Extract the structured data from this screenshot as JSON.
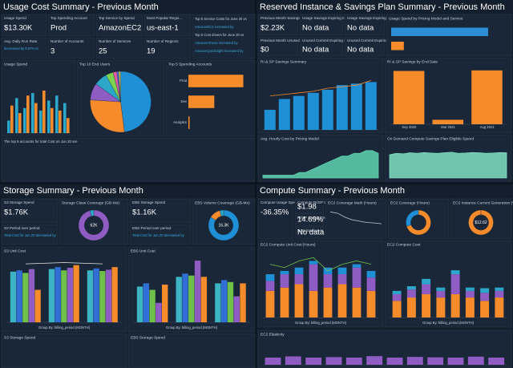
{
  "quadrants": [
    {
      "title": "Usage Cost Summary - Previous Month",
      "kpis": [
        {
          "label": "Usage Spend",
          "value": "$13.30K"
        },
        {
          "label": "Top Spending Account",
          "value": "Prod"
        },
        {
          "label": "Top Service by Spend",
          "value": "AmazonEC2"
        },
        {
          "label": "Most Popular Regio...",
          "value": "us-east-1"
        },
        {
          "label": "Avg. Daily Run Rate",
          "value": "decreased by 8.97% to",
          "small": true
        },
        {
          "label": "Number of Accounts",
          "value": "3"
        },
        {
          "label": "Number of Services",
          "value": "25"
        },
        {
          "label": "Number of Regions",
          "value": "19"
        }
      ],
      "notes": [
        "Top 5 Service Costs for June 20 vs",
        "AmazonEC2 increased by",
        "Top 5 Cost drivers for June 20 vs",
        "AmazonAthena increased by",
        "AmazonQuickSight increased by"
      ],
      "footer": "The top 5 accounts for total Cost on Jun 20 are",
      "charts": [
        {
          "type": "bar",
          "title": "Usage Spend",
          "categories": [
            null,
            null,
            null,
            null,
            null,
            null,
            null,
            null
          ],
          "ylim": [
            0,
            2.5
          ],
          "series": [
            {
              "color": "#2ca6c9",
              "values": [
                0.5,
                1.4,
                1.0,
                1.6,
                0.9,
                1.3,
                1.5,
                1.2
              ]
            },
            {
              "color": "#f58b2b",
              "values": [
                1.1,
                0.8,
                1.5,
                1.2,
                1.7,
                1.0,
                0.9,
                0.6
              ]
            }
          ]
        },
        {
          "type": "pie",
          "title": "Top 10 End Users",
          "values": [
            48,
            28,
            9,
            7,
            4,
            2,
            1,
            1
          ],
          "colors": [
            "#1f8fd6",
            "#f58b2b",
            "#8e5cc2",
            "#2ca6c9",
            "#7bd34f",
            "#e05ca0",
            "#4b6bd6",
            "#c8c84a"
          ]
        },
        {
          "type": "hbar",
          "title": "Top 5 Spending Accounts",
          "categories": [
            "Prod",
            "Dev",
            "Analytics"
          ],
          "values": [
            8.9,
            4.2,
            0.2
          ],
          "xlim": [
            0,
            10
          ],
          "color": "#f58b2b"
        }
      ]
    },
    {
      "title": "Reserved Instance & Savings Plan Summary - Previous Month",
      "kpis": [
        {
          "label": "Previous Month Savings",
          "value": "$2.23K"
        },
        {
          "label": "Usage Savings Expiring In...",
          "value": "No data"
        },
        {
          "label": "Usage Savings Expiring In...",
          "value": "No data"
        },
        {
          "label": "Previous Month Unused Cost",
          "value": "$0"
        },
        {
          "label": "Unused Commit Expiring in...",
          "value": "No data"
        },
        {
          "label": "Unused Commit Expiring in...",
          "value": "No data"
        }
      ],
      "charts": [
        {
          "type": "hbar",
          "title": "Usage Spend by Pricing Model and Service",
          "categories": [
            null,
            null
          ],
          "values": [
            8.4,
            1.1
          ],
          "xlim": [
            0,
            10
          ],
          "colors": [
            "#2c8fd6",
            "#f58b2b"
          ]
        },
        {
          "type": "bar",
          "title": "RI & SP Savings Summary",
          "categories": [
            null,
            null,
            null,
            null,
            null,
            null,
            null,
            null
          ],
          "ylim": [
            0,
            4
          ],
          "series": [
            {
              "color": "#1f8fd6",
              "values": [
                1.3,
                2.0,
                2.2,
                2.4,
                2.6,
                2.9,
                3.0,
                3.1
              ]
            },
            {
              "color": "#f58b2b",
              "kind": "line",
              "values": [
                2.2,
                2.3,
                2.4,
                2.5,
                2.7,
                2.8,
                2.9,
                3.2
              ]
            }
          ]
        },
        {
          "type": "bar",
          "title": "RI & SP Savings by End Date",
          "categories": [
            "Sep 2020",
            "Mar 2021",
            "Aug 2021"
          ],
          "ylim": [
            0,
            10
          ],
          "series": [
            {
              "color": "#f58b2b",
              "values": [
                9.5,
                0.8,
                9.6
              ]
            }
          ]
        },
        {
          "type": "area",
          "title": "Avg. Hourly Cost by Pricing Model",
          "ylim": [
            0,
            1.2
          ],
          "color": "#5fd3b0",
          "values": [
            0.1,
            0.1,
            0.1,
            0.1,
            0.1,
            0.1,
            0.2,
            0.2,
            0.3,
            0.4,
            0.5,
            0.6,
            0.7,
            0.8,
            0.8,
            0.9,
            0.9,
            1.0,
            1.0,
            0.9
          ]
        },
        {
          "type": "area",
          "title": "On Demand Compute Savings Plan Eligible Spend",
          "ylim": [
            0,
            1.2
          ],
          "color": "#7fe0c4",
          "values": [
            0.85,
            0.9,
            0.88,
            0.92,
            0.9,
            0.93,
            0.91,
            0.9,
            0.92,
            0.94,
            0.9,
            0.91,
            0.93,
            0.92,
            0.9,
            0.91,
            0.93,
            0.92
          ]
        }
      ]
    },
    {
      "title": "Storage Summary - Previous Month",
      "kpis": [
        {
          "label": "S3 Storage Spend",
          "value": "$1.76K"
        },
        {
          "label": "EBS Storage Spend",
          "value": "$1.16K"
        },
        {
          "label": "S3 Period over period",
          "value": "Total Cost for Jun 20 decreased by",
          "small": true
        },
        {
          "label": "EBS Period over period",
          "value": "Total Cost for Jun 20 decreased by",
          "small": true
        }
      ],
      "charts": [
        {
          "type": "pie",
          "title": "Storage Class Coverage (GB-Mo)",
          "donut": true,
          "center": "62K",
          "values": [
            96,
            4
          ],
          "colors": [
            "#8e5cc2",
            "#2ca6c9"
          ]
        },
        {
          "type": "pie",
          "title": "EBS Volume Coverage (GB-Mo)",
          "donut": true,
          "center": "16.3K",
          "values": [
            84,
            12,
            4
          ],
          "colors": [
            "#1f8fd6",
            "#f58b2b",
            "#2ca6c9"
          ]
        },
        {
          "type": "bar",
          "title": "S3 Unit Cost",
          "xlabel": "Group By: billing_period (MONTH)",
          "categories": [
            null,
            null,
            null
          ],
          "ylim": [
            0,
            1
          ],
          "series": [
            {
              "color": "#3bb3c3",
              "values": [
                0.78,
                0.82,
                0.8
              ]
            },
            {
              "color": "#2f6fd6",
              "values": [
                0.8,
                0.85,
                0.83
              ]
            },
            {
              "color": "#6fc04a",
              "values": [
                0.76,
                0.8,
                0.79
              ]
            },
            {
              "color": "#8e5cc2",
              "values": [
                0.82,
                0.84,
                0.81
              ]
            },
            {
              "color": "#f58b2b",
              "values": [
                0.5,
                0.88,
                0.85
              ]
            },
            {
              "color": "#e6e6e6",
              "kind": "line",
              "values": [
                0.9,
                0.92,
                0.9
              ]
            }
          ]
        },
        {
          "type": "bar",
          "title": "EBS Unit Cost",
          "xlabel": "Group By: billing_period (MONTH)",
          "categories": [
            null,
            null,
            null
          ],
          "ylim": [
            0,
            1
          ],
          "series": [
            {
              "color": "#3bb3c3",
              "values": [
                0.55,
                0.7,
                0.6
              ]
            },
            {
              "color": "#2f6fd6",
              "values": [
                0.6,
                0.75,
                0.65
              ]
            },
            {
              "color": "#6fc04a",
              "values": [
                0.5,
                0.72,
                0.62
              ]
            },
            {
              "color": "#8e5cc2",
              "values": [
                0.3,
                0.95,
                0.4
              ]
            },
            {
              "color": "#f58b2b",
              "values": [
                0.58,
                0.7,
                0.6
              ]
            }
          ]
        },
        {
          "type": "empty",
          "title": "S3 Storage Spend"
        },
        {
          "type": "empty",
          "title": "EBS Storage Spend"
        }
      ]
    },
    {
      "title": "Compute Summary - Previous Month",
      "kpis": [
        {
          "label": "Compute Usage Spend",
          "value": "-36.35%"
        },
        {
          "label": "Compute RI/SP Savings",
          "value": "$1.98"
        },
        {
          "label": "RI/SP Savings %",
          "value": "14.69%"
        },
        {
          "label": "Spot Savings %",
          "value": "No data"
        }
      ],
      "charts": [
        {
          "type": "line",
          "title": "EC2 Coverage Math (Hours)",
          "ylim": [
            0,
            1
          ],
          "color": "#c0c6cc",
          "values": [
            0.9,
            0.85,
            0.7,
            0.6,
            0.55,
            0.5,
            0.48,
            0.45
          ]
        },
        {
          "type": "pie",
          "title": "EC2 Coverage (Hours)",
          "donut": true,
          "values": [
            70,
            30
          ],
          "colors": [
            "#f58b2b",
            "#1f8fd6"
          ]
        },
        {
          "type": "pie",
          "title": "EC2 Instance Current Generation (%)",
          "donut": true,
          "center": "$12.62",
          "values": [
            100
          ],
          "colors": [
            "#f58b2b"
          ]
        },
        {
          "type": "bar",
          "stacked": true,
          "title": "EC2 Compute Unit Cost (Hours)",
          "xlabel": "Group By: billing_period (MONTH)",
          "categories": [
            null,
            null,
            null,
            null,
            null,
            null,
            null,
            null
          ],
          "ylim": [
            0,
            1
          ],
          "series": [
            {
              "color": "#f58b2b",
              "values": [
                0.4,
                0.45,
                0.5,
                0.4,
                0.45,
                0.5,
                0.45,
                0.4
              ]
            },
            {
              "color": "#8e5cc2",
              "values": [
                0.15,
                0.2,
                0.15,
                0.4,
                0.2,
                0.15,
                0.3,
                0.2
              ]
            },
            {
              "color": "#1f8fd6",
              "values": [
                0.1,
                0.05,
                0.1,
                0.05,
                0.1,
                0.1,
                0.05,
                0.1
              ]
            },
            {
              "color": "#6fc04a",
              "kind": "line",
              "values": [
                0.8,
                0.75,
                0.85,
                0.9,
                0.7,
                0.8,
                0.85,
                0.8
              ]
            }
          ]
        },
        {
          "type": "bar",
          "stacked": true,
          "title": "EC2 Compute Cost",
          "xlabel": "Group By: billing_period (MONTH)",
          "categories": [
            null,
            null,
            null,
            null,
            null,
            null,
            null,
            null
          ],
          "ylim": [
            0,
            1
          ],
          "series": [
            {
              "color": "#f58b2b",
              "values": [
                0.25,
                0.3,
                0.35,
                0.3,
                0.35,
                0.3,
                0.25,
                0.3
              ]
            },
            {
              "color": "#8e5cc2",
              "values": [
                0.1,
                0.12,
                0.15,
                0.1,
                0.3,
                0.1,
                0.12,
                0.1
              ]
            },
            {
              "color": "#2ca6c9",
              "values": [
                0.05,
                0.05,
                0.08,
                0.05,
                0.06,
                0.05,
                0.07,
                0.05
              ]
            }
          ]
        },
        {
          "type": "bar",
          "title": "EC2 Elasticity",
          "categories": [
            null,
            null,
            null,
            null,
            null,
            null,
            null,
            null,
            null,
            null,
            null,
            null
          ],
          "ylim": [
            0,
            1
          ],
          "series": [
            {
              "color": "#8e5cc2",
              "values": [
                0.3,
                0.35,
                0.3,
                0.32,
                0.3,
                0.36,
                0.3,
                0.33,
                0.31,
                0.3,
                0.34,
                0.3
              ]
            }
          ]
        }
      ]
    }
  ]
}
